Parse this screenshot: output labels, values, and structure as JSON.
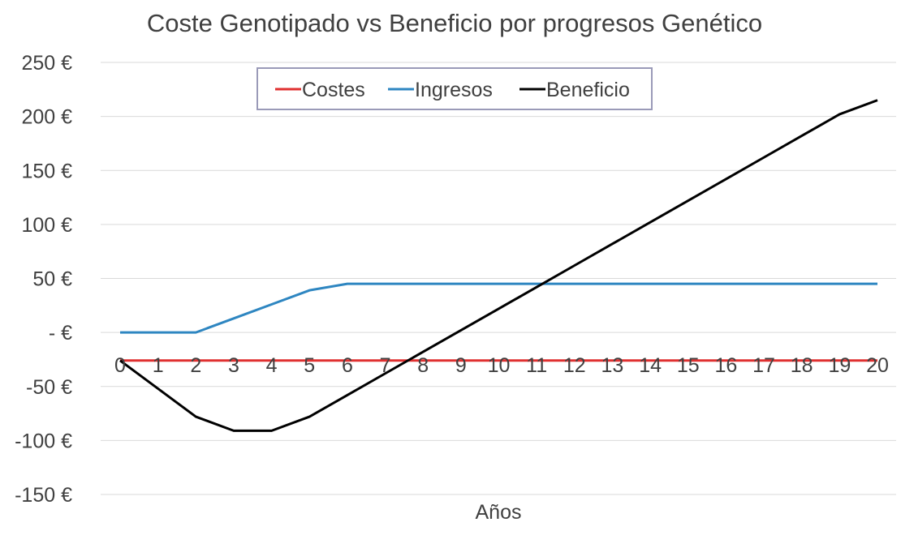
{
  "chart_data": {
    "type": "line",
    "title": "Coste Genotipado vs Beneficio por progresos Genético",
    "xlabel": "Años",
    "ylabel": "",
    "x": [
      0,
      1,
      2,
      3,
      4,
      5,
      6,
      7,
      8,
      9,
      10,
      11,
      12,
      13,
      14,
      15,
      16,
      17,
      18,
      19,
      20
    ],
    "ylim": [
      -150,
      250
    ],
    "yticks": [
      {
        "value": 250,
        "label": "250 €"
      },
      {
        "value": 200,
        "label": "200 €"
      },
      {
        "value": 150,
        "label": "150 €"
      },
      {
        "value": 100,
        "label": "100 €"
      },
      {
        "value": 50,
        "label": "50 €"
      },
      {
        "value": 0,
        "label": "-   €"
      },
      {
        "value": -50,
        "label": "-50 €"
      },
      {
        "value": -100,
        "label": "-100 €"
      },
      {
        "value": -150,
        "label": "-150 €"
      }
    ],
    "grid": true,
    "legend_position": "top",
    "series": [
      {
        "name": "Costes",
        "color": "#e03030",
        "values": [
          -26,
          -26,
          -26,
          -26,
          -26,
          -26,
          -26,
          -26,
          -26,
          -26,
          -26,
          -26,
          -26,
          -26,
          -26,
          -26,
          -26,
          -26,
          -26,
          -26,
          -26
        ]
      },
      {
        "name": "Ingresos",
        "color": "#2e86c1",
        "values": [
          0,
          0,
          0,
          13,
          26,
          39,
          45,
          45,
          45,
          45,
          45,
          45,
          45,
          45,
          45,
          45,
          45,
          45,
          45,
          45,
          45
        ]
      },
      {
        "name": "Beneficio",
        "color": "#000000",
        "values": [
          -26,
          -52,
          -78,
          -91,
          -91,
          -78,
          -58,
          -38,
          -18,
          2,
          22,
          42,
          62,
          82,
          102,
          122,
          142,
          162,
          182,
          202,
          215
        ]
      }
    ]
  }
}
